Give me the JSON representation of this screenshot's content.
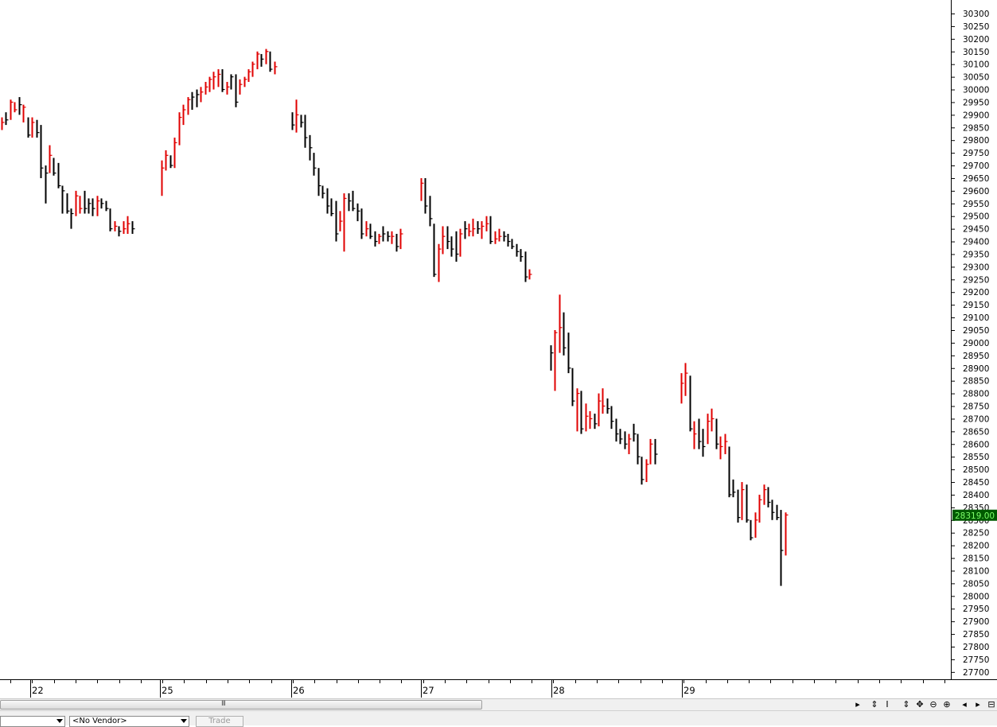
{
  "chart_data": {
    "type": "ohlc",
    "title": "",
    "xlabel": "",
    "ylabel": "",
    "ylim": [
      27700,
      30325
    ],
    "y_ticks": [
      27700,
      27750,
      27800,
      27850,
      27900,
      27950,
      28000,
      28050,
      28100,
      28150,
      28200,
      28250,
      28300,
      28350,
      28400,
      28450,
      28500,
      28550,
      28600,
      28650,
      28700,
      28750,
      28800,
      28850,
      28900,
      28950,
      29000,
      29050,
      29100,
      29150,
      29200,
      29250,
      29300,
      29350,
      29400,
      29450,
      29500,
      29550,
      29600,
      29650,
      29700,
      29750,
      29800,
      29850,
      29900,
      29950,
      30000,
      30050,
      30100,
      30150,
      30200,
      30250,
      30300
    ],
    "day_labels": [
      "22",
      "25",
      "26",
      "27",
      "28",
      "29"
    ],
    "current_price": "28319.00",
    "up_color": "#e00000",
    "down_color": "#000000",
    "bars": [
      {
        "d": 0,
        "h": 29890,
        "l": 29840,
        "c": 29870,
        "up": true
      },
      {
        "d": 0,
        "h": 29910,
        "l": 29860,
        "c": 29880,
        "up": false
      },
      {
        "d": 0,
        "h": 29960,
        "l": 29880,
        "c": 29950,
        "up": true
      },
      {
        "d": 0,
        "h": 29950,
        "l": 29910,
        "c": 29920,
        "up": true
      },
      {
        "d": 0,
        "h": 29970,
        "l": 29900,
        "c": 29940,
        "up": false
      },
      {
        "d": 0,
        "h": 29940,
        "l": 29870,
        "c": 29930,
        "up": true
      },
      {
        "d": 0,
        "h": 29890,
        "l": 29810,
        "c": 29820,
        "up": false
      },
      {
        "d": 0,
        "h": 29890,
        "l": 29810,
        "c": 29870,
        "up": true
      },
      {
        "d": 0,
        "h": 29880,
        "l": 29810,
        "c": 29830,
        "up": false
      },
      {
        "d": 0,
        "h": 29860,
        "l": 29650,
        "c": 29690,
        "up": false
      },
      {
        "d": 0,
        "h": 29700,
        "l": 29550,
        "c": 29670,
        "up": false
      },
      {
        "d": 0,
        "h": 29780,
        "l": 29670,
        "c": 29740,
        "up": true
      },
      {
        "d": 0,
        "h": 29730,
        "l": 29660,
        "c": 29670,
        "up": false
      },
      {
        "d": 0,
        "h": 29710,
        "l": 29610,
        "c": 29620,
        "up": false
      },
      {
        "d": 0,
        "h": 29620,
        "l": 29510,
        "c": 29600,
        "up": false
      },
      {
        "d": 0,
        "h": 29590,
        "l": 29510,
        "c": 29520,
        "up": false
      },
      {
        "d": 0,
        "h": 29530,
        "l": 29450,
        "c": 29510,
        "up": false
      },
      {
        "d": 0,
        "h": 29600,
        "l": 29500,
        "c": 29580,
        "up": true
      },
      {
        "d": 0,
        "h": 29580,
        "l": 29510,
        "c": 29530,
        "up": true
      },
      {
        "d": 0,
        "h": 29600,
        "l": 29510,
        "c": 29530,
        "up": false
      },
      {
        "d": 0,
        "h": 29570,
        "l": 29510,
        "c": 29550,
        "up": false
      },
      {
        "d": 0,
        "h": 29570,
        "l": 29500,
        "c": 29530,
        "up": false
      },
      {
        "d": 0,
        "h": 29580,
        "l": 29500,
        "c": 29560,
        "up": true
      },
      {
        "d": 0,
        "h": 29570,
        "l": 29530,
        "c": 29550,
        "up": false
      },
      {
        "d": 0,
        "h": 29560,
        "l": 29520,
        "c": 29530,
        "up": false
      },
      {
        "d": 0,
        "h": 29530,
        "l": 29440,
        "c": 29450,
        "up": false
      },
      {
        "d": 0,
        "h": 29480,
        "l": 29440,
        "c": 29460,
        "up": true
      },
      {
        "d": 0,
        "h": 29460,
        "l": 29420,
        "c": 29440,
        "up": false
      },
      {
        "d": 0,
        "h": 29480,
        "l": 29430,
        "c": 29450,
        "up": true
      },
      {
        "d": 0,
        "h": 29500,
        "l": 29430,
        "c": 29470,
        "up": true
      },
      {
        "d": 0,
        "h": 29480,
        "l": 29430,
        "c": 29450,
        "up": false
      },
      {
        "d": 1,
        "h": 29720,
        "l": 29580,
        "c": 29690,
        "up": true
      },
      {
        "d": 1,
        "h": 29760,
        "l": 29680,
        "c": 29740,
        "up": true
      },
      {
        "d": 1,
        "h": 29740,
        "l": 29690,
        "c": 29700,
        "up": false
      },
      {
        "d": 1,
        "h": 29810,
        "l": 29690,
        "c": 29790,
        "up": true
      },
      {
        "d": 1,
        "h": 29910,
        "l": 29780,
        "c": 29890,
        "up": true
      },
      {
        "d": 1,
        "h": 29940,
        "l": 29860,
        "c": 29920,
        "up": true
      },
      {
        "d": 1,
        "h": 29970,
        "l": 29900,
        "c": 29960,
        "up": true
      },
      {
        "d": 1,
        "h": 29990,
        "l": 29920,
        "c": 29970,
        "up": false
      },
      {
        "d": 1,
        "h": 30000,
        "l": 29930,
        "c": 29980,
        "up": false
      },
      {
        "d": 1,
        "h": 30010,
        "l": 29950,
        "c": 29990,
        "up": true
      },
      {
        "d": 1,
        "h": 30030,
        "l": 29980,
        "c": 30010,
        "up": true
      },
      {
        "d": 1,
        "h": 30050,
        "l": 29990,
        "c": 30040,
        "up": true
      },
      {
        "d": 1,
        "h": 30070,
        "l": 30000,
        "c": 30050,
        "up": true
      },
      {
        "d": 1,
        "h": 30080,
        "l": 30010,
        "c": 30060,
        "up": true
      },
      {
        "d": 1,
        "h": 30080,
        "l": 29990,
        "c": 30000,
        "up": false
      },
      {
        "d": 1,
        "h": 30030,
        "l": 29980,
        "c": 30010,
        "up": true
      },
      {
        "d": 1,
        "h": 30060,
        "l": 30000,
        "c": 30050,
        "up": false
      },
      {
        "d": 1,
        "h": 30060,
        "l": 29930,
        "c": 29950,
        "up": false
      },
      {
        "d": 1,
        "h": 30040,
        "l": 29980,
        "c": 30020,
        "up": true
      },
      {
        "d": 1,
        "h": 30050,
        "l": 30010,
        "c": 30040,
        "up": true
      },
      {
        "d": 1,
        "h": 30080,
        "l": 30030,
        "c": 30070,
        "up": true
      },
      {
        "d": 1,
        "h": 30110,
        "l": 30050,
        "c": 30100,
        "up": true
      },
      {
        "d": 1,
        "h": 30150,
        "l": 30080,
        "c": 30140,
        "up": true
      },
      {
        "d": 1,
        "h": 30140,
        "l": 30090,
        "c": 30120,
        "up": false
      },
      {
        "d": 1,
        "h": 30160,
        "l": 30100,
        "c": 30150,
        "up": true
      },
      {
        "d": 1,
        "h": 30150,
        "l": 30070,
        "c": 30080,
        "up": false
      },
      {
        "d": 1,
        "h": 30110,
        "l": 30060,
        "c": 30090,
        "up": true
      },
      {
        "d": 2,
        "h": 29910,
        "l": 29840,
        "c": 29860,
        "up": false
      },
      {
        "d": 2,
        "h": 29960,
        "l": 29830,
        "c": 29900,
        "up": true
      },
      {
        "d": 2,
        "h": 29900,
        "l": 29850,
        "c": 29870,
        "up": false
      },
      {
        "d": 2,
        "h": 29900,
        "l": 29770,
        "c": 29810,
        "up": false
      },
      {
        "d": 2,
        "h": 29820,
        "l": 29720,
        "c": 29770,
        "up": false
      },
      {
        "d": 2,
        "h": 29750,
        "l": 29660,
        "c": 29690,
        "up": false
      },
      {
        "d": 2,
        "h": 29690,
        "l": 29580,
        "c": 29620,
        "up": false
      },
      {
        "d": 2,
        "h": 29620,
        "l": 29570,
        "c": 29590,
        "up": false
      },
      {
        "d": 2,
        "h": 29610,
        "l": 29510,
        "c": 29540,
        "up": false
      },
      {
        "d": 2,
        "h": 29570,
        "l": 29500,
        "c": 29510,
        "up": false
      },
      {
        "d": 2,
        "h": 29560,
        "l": 29400,
        "c": 29430,
        "up": false
      },
      {
        "d": 2,
        "h": 29520,
        "l": 29440,
        "c": 29480,
        "up": true
      },
      {
        "d": 2,
        "h": 29590,
        "l": 29360,
        "c": 29570,
        "up": true
      },
      {
        "d": 2,
        "h": 29590,
        "l": 29520,
        "c": 29560,
        "up": false
      },
      {
        "d": 2,
        "h": 29600,
        "l": 29520,
        "c": 29530,
        "up": false
      },
      {
        "d": 2,
        "h": 29550,
        "l": 29480,
        "c": 29520,
        "up": false
      },
      {
        "d": 2,
        "h": 29530,
        "l": 29410,
        "c": 29430,
        "up": false
      },
      {
        "d": 2,
        "h": 29480,
        "l": 29420,
        "c": 29450,
        "up": true
      },
      {
        "d": 2,
        "h": 29470,
        "l": 29410,
        "c": 29420,
        "up": false
      },
      {
        "d": 2,
        "h": 29440,
        "l": 29380,
        "c": 29400,
        "up": false
      },
      {
        "d": 2,
        "h": 29430,
        "l": 29390,
        "c": 29420,
        "up": true
      },
      {
        "d": 2,
        "h": 29460,
        "l": 29400,
        "c": 29430,
        "up": false
      },
      {
        "d": 2,
        "h": 29440,
        "l": 29400,
        "c": 29420,
        "up": false
      },
      {
        "d": 2,
        "h": 29440,
        "l": 29390,
        "c": 29420,
        "up": true
      },
      {
        "d": 2,
        "h": 29430,
        "l": 29360,
        "c": 29380,
        "up": false
      },
      {
        "d": 2,
        "h": 29450,
        "l": 29370,
        "c": 29430,
        "up": true
      },
      {
        "d": 3,
        "h": 29650,
        "l": 29560,
        "c": 29630,
        "up": true
      },
      {
        "d": 3,
        "h": 29650,
        "l": 29510,
        "c": 29540,
        "up": false
      },
      {
        "d": 3,
        "h": 29580,
        "l": 29460,
        "c": 29490,
        "up": false
      },
      {
        "d": 3,
        "h": 29470,
        "l": 29260,
        "c": 29270,
        "up": false
      },
      {
        "d": 3,
        "h": 29390,
        "l": 29240,
        "c": 29370,
        "up": true
      },
      {
        "d": 3,
        "h": 29460,
        "l": 29350,
        "c": 29420,
        "up": true
      },
      {
        "d": 3,
        "h": 29460,
        "l": 29370,
        "c": 29400,
        "up": false
      },
      {
        "d": 3,
        "h": 29420,
        "l": 29340,
        "c": 29370,
        "up": false
      },
      {
        "d": 3,
        "h": 29440,
        "l": 29320,
        "c": 29350,
        "up": false
      },
      {
        "d": 3,
        "h": 29450,
        "l": 29340,
        "c": 29430,
        "up": true
      },
      {
        "d": 3,
        "h": 29480,
        "l": 29410,
        "c": 29450,
        "up": false
      },
      {
        "d": 3,
        "h": 29470,
        "l": 29420,
        "c": 29440,
        "up": true
      },
      {
        "d": 3,
        "h": 29490,
        "l": 29420,
        "c": 29450,
        "up": true
      },
      {
        "d": 3,
        "h": 29480,
        "l": 29430,
        "c": 29450,
        "up": false
      },
      {
        "d": 3,
        "h": 29480,
        "l": 29410,
        "c": 29460,
        "up": true
      },
      {
        "d": 3,
        "h": 29500,
        "l": 29440,
        "c": 29470,
        "up": true
      },
      {
        "d": 3,
        "h": 29500,
        "l": 29390,
        "c": 29400,
        "up": false
      },
      {
        "d": 3,
        "h": 29440,
        "l": 29390,
        "c": 29410,
        "up": true
      },
      {
        "d": 3,
        "h": 29450,
        "l": 29400,
        "c": 29420,
        "up": true
      },
      {
        "d": 3,
        "h": 29440,
        "l": 29400,
        "c": 29420,
        "up": false
      },
      {
        "d": 3,
        "h": 29430,
        "l": 29380,
        "c": 29400,
        "up": false
      },
      {
        "d": 3,
        "h": 29410,
        "l": 29370,
        "c": 29380,
        "up": false
      },
      {
        "d": 3,
        "h": 29390,
        "l": 29340,
        "c": 29360,
        "up": false
      },
      {
        "d": 3,
        "h": 29370,
        "l": 29320,
        "c": 29340,
        "up": false
      },
      {
        "d": 3,
        "h": 29360,
        "l": 29240,
        "c": 29260,
        "up": false
      },
      {
        "d": 3,
        "h": 29290,
        "l": 29250,
        "c": 29270,
        "up": true
      },
      {
        "d": 4,
        "h": 28990,
        "l": 28890,
        "c": 28960,
        "up": false
      },
      {
        "d": 4,
        "h": 29050,
        "l": 28810,
        "c": 29040,
        "up": true
      },
      {
        "d": 4,
        "h": 29190,
        "l": 28960,
        "c": 29060,
        "up": true
      },
      {
        "d": 4,
        "h": 29120,
        "l": 28950,
        "c": 28980,
        "up": false
      },
      {
        "d": 4,
        "h": 29040,
        "l": 28880,
        "c": 28900,
        "up": false
      },
      {
        "d": 4,
        "h": 28900,
        "l": 28750,
        "c": 28770,
        "up": false
      },
      {
        "d": 4,
        "h": 28820,
        "l": 28650,
        "c": 28800,
        "up": true
      },
      {
        "d": 4,
        "h": 28810,
        "l": 28640,
        "c": 28660,
        "up": false
      },
      {
        "d": 4,
        "h": 28760,
        "l": 28650,
        "c": 28710,
        "up": true
      },
      {
        "d": 4,
        "h": 28730,
        "l": 28660,
        "c": 28700,
        "up": true
      },
      {
        "d": 4,
        "h": 28720,
        "l": 28660,
        "c": 28680,
        "up": false
      },
      {
        "d": 4,
        "h": 28800,
        "l": 28670,
        "c": 28770,
        "up": true
      },
      {
        "d": 4,
        "h": 28820,
        "l": 28720,
        "c": 28750,
        "up": true
      },
      {
        "d": 4,
        "h": 28780,
        "l": 28720,
        "c": 28740,
        "up": false
      },
      {
        "d": 4,
        "h": 28750,
        "l": 28660,
        "c": 28690,
        "up": false
      },
      {
        "d": 4,
        "h": 28700,
        "l": 28610,
        "c": 28640,
        "up": false
      },
      {
        "d": 4,
        "h": 28660,
        "l": 28600,
        "c": 28620,
        "up": false
      },
      {
        "d": 4,
        "h": 28650,
        "l": 28580,
        "c": 28600,
        "up": false
      },
      {
        "d": 4,
        "h": 28640,
        "l": 28560,
        "c": 28620,
        "up": true
      },
      {
        "d": 4,
        "h": 28680,
        "l": 28610,
        "c": 28640,
        "up": false
      },
      {
        "d": 4,
        "h": 28640,
        "l": 28520,
        "c": 28550,
        "up": false
      },
      {
        "d": 4,
        "h": 28550,
        "l": 28440,
        "c": 28460,
        "up": false
      },
      {
        "d": 4,
        "h": 28540,
        "l": 28450,
        "c": 28520,
        "up": true
      },
      {
        "d": 4,
        "h": 28620,
        "l": 28520,
        "c": 28600,
        "up": true
      },
      {
        "d": 4,
        "h": 28620,
        "l": 28520,
        "c": 28560,
        "up": false
      },
      {
        "d": 5,
        "h": 28880,
        "l": 28760,
        "c": 28840,
        "up": true
      },
      {
        "d": 5,
        "h": 28920,
        "l": 28790,
        "c": 28880,
        "up": true
      },
      {
        "d": 5,
        "h": 28870,
        "l": 28650,
        "c": 28660,
        "up": false
      },
      {
        "d": 5,
        "h": 28690,
        "l": 28580,
        "c": 28640,
        "up": true
      },
      {
        "d": 5,
        "h": 28700,
        "l": 28580,
        "c": 28610,
        "up": false
      },
      {
        "d": 5,
        "h": 28660,
        "l": 28550,
        "c": 28590,
        "up": false
      },
      {
        "d": 5,
        "h": 28720,
        "l": 28600,
        "c": 28690,
        "up": true
      },
      {
        "d": 5,
        "h": 28740,
        "l": 28650,
        "c": 28700,
        "up": true
      },
      {
        "d": 5,
        "h": 28700,
        "l": 28580,
        "c": 28600,
        "up": false
      },
      {
        "d": 5,
        "h": 28630,
        "l": 28540,
        "c": 28590,
        "up": true
      },
      {
        "d": 5,
        "h": 28640,
        "l": 28560,
        "c": 28610,
        "up": true
      },
      {
        "d": 5,
        "h": 28590,
        "l": 28390,
        "c": 28400,
        "up": false
      },
      {
        "d": 5,
        "h": 28460,
        "l": 28390,
        "c": 28410,
        "up": false
      },
      {
        "d": 5,
        "h": 28420,
        "l": 28290,
        "c": 28310,
        "up": false
      },
      {
        "d": 5,
        "h": 28450,
        "l": 28300,
        "c": 28420,
        "up": true
      },
      {
        "d": 5,
        "h": 28440,
        "l": 28290,
        "c": 28300,
        "up": false
      },
      {
        "d": 5,
        "h": 28300,
        "l": 28220,
        "c": 28230,
        "up": false
      },
      {
        "d": 5,
        "h": 28330,
        "l": 28230,
        "c": 28300,
        "up": true
      },
      {
        "d": 5,
        "h": 28400,
        "l": 28290,
        "c": 28380,
        "up": true
      },
      {
        "d": 5,
        "h": 28440,
        "l": 28360,
        "c": 28420,
        "up": true
      },
      {
        "d": 5,
        "h": 28430,
        "l": 28350,
        "c": 28370,
        "up": false
      },
      {
        "d": 5,
        "h": 28380,
        "l": 28300,
        "c": 28330,
        "up": false
      },
      {
        "d": 5,
        "h": 28360,
        "l": 28300,
        "c": 28310,
        "up": false
      },
      {
        "d": 5,
        "h": 28340,
        "l": 28040,
        "c": 28180,
        "up": false
      },
      {
        "d": 5,
        "h": 28330,
        "l": 28160,
        "c": 28320,
        "up": true
      }
    ]
  },
  "toolbar": {
    "grip": "III",
    "buttons": [
      "▸",
      "⇕",
      "I",
      "⇕",
      "✥",
      "⊖",
      "⊕",
      "◂",
      "▸",
      "⊟"
    ]
  },
  "bottom": {
    "symbol_combo": "",
    "vendor_combo": "<No Vendor>",
    "trade_label": "Trade"
  }
}
